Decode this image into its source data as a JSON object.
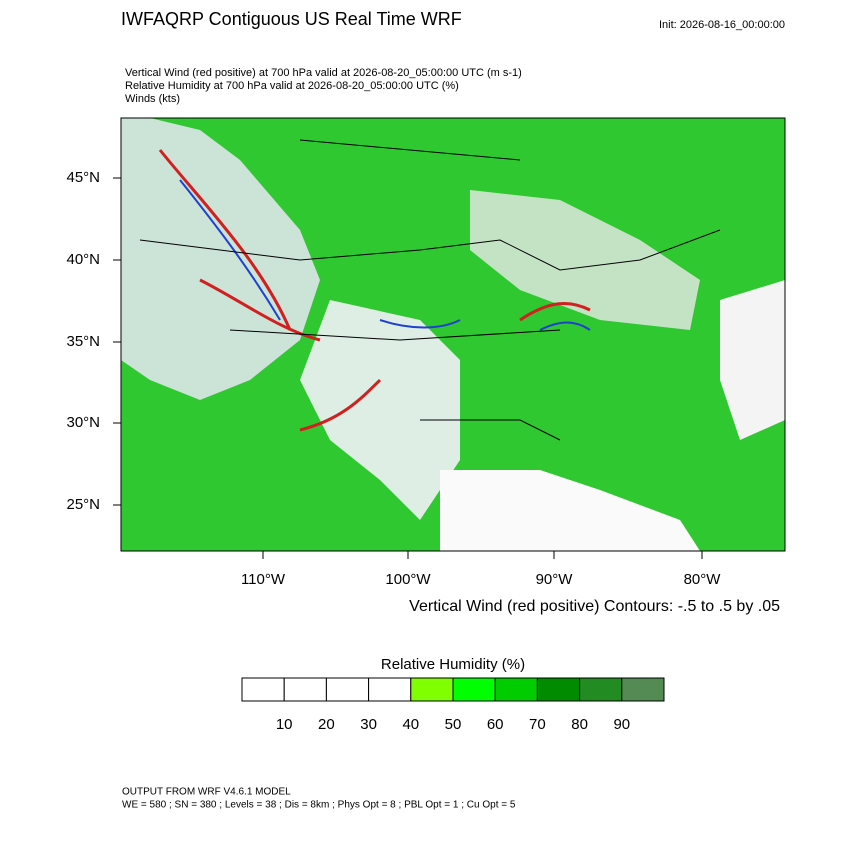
{
  "header": {
    "title": "IWFAQRP Contiguous US Real Time WRF",
    "init": "Init: 2026-08-16_00:00:00",
    "lines": [
      "Vertical Wind (red positive) at 700 hPa valid at 2026-08-20_05:00:00 UTC   (m s-1)",
      "Relative Humidity at 700 hPa valid at 2026-08-20_05:00:00 UTC   (%)",
      "Winds   (kts)"
    ]
  },
  "map": {
    "lat_labels": [
      "45°N",
      "40°N",
      "35°N",
      "30°N",
      "25°N"
    ],
    "lon_labels": [
      "110°W",
      "100°W",
      "90°W",
      "80°W"
    ],
    "contour_note": "Vertical Wind (red positive) Contours: -.5 to .5 by .05"
  },
  "colorbar": {
    "title": "Relative Humidity  (%)",
    "labels": [
      10,
      20,
      30,
      40,
      50,
      60,
      70,
      80,
      90
    ],
    "colors": [
      "#ffffff",
      "#ffffff",
      "#ffffff",
      "#ffffff",
      "#80ff00",
      "#00ff00",
      "#00cc00",
      "#008b00",
      "#228b22",
      "#548b54"
    ]
  },
  "footer": {
    "lines": [
      "OUTPUT FROM WRF V4.6.1 MODEL",
      "WE = 580 ; SN = 380 ; Levels = 38 ; Dis = 8km ; Phys Opt = 8 ; PBL Opt = 1 ; Cu Opt = 5"
    ]
  }
}
